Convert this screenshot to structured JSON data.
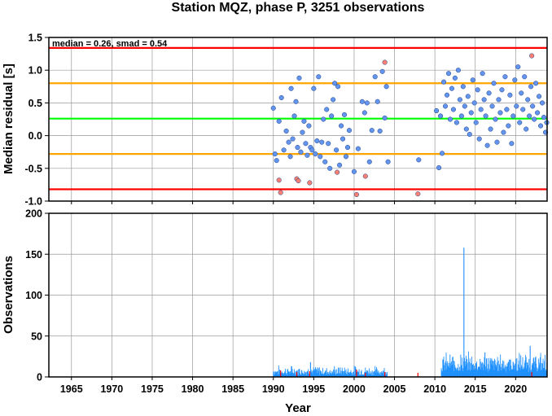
{
  "chart_data": [
    {
      "type": "scatter",
      "title": "Station MQZ, phase P, 3251 observations",
      "ylabel": "Median residual [s]",
      "annotation": "median = 0.26, smad = 0.54",
      "xlim": [
        1962.2,
        2023.9
      ],
      "ylim": [
        -1.0,
        1.5
      ],
      "yticks": [
        "-1.0",
        "-0.5",
        "0.0",
        "0.5",
        "1.0",
        "1.5"
      ],
      "grid": true,
      "reference_lines": [
        {
          "value": 1.34,
          "color": "#ff0000"
        },
        {
          "value": 0.8,
          "color": "#ffa500"
        },
        {
          "value": 0.26,
          "color": "#00ff00"
        },
        {
          "value": -0.28,
          "color": "#ffa500"
        },
        {
          "value": -0.82,
          "color": "#ff0000"
        }
      ],
      "series": [
        {
          "color": "#6495ed",
          "points": [
            [
              1990.0,
              0.42
            ],
            [
              1990.2,
              -0.28
            ],
            [
              1990.4,
              -0.38
            ],
            [
              1990.7,
              0.22
            ],
            [
              1991.0,
              0.58
            ],
            [
              1991.3,
              -0.22
            ],
            [
              1991.6,
              0.07
            ],
            [
              1991.9,
              -0.1
            ],
            [
              1992.1,
              -0.32
            ],
            [
              1992.2,
              0.72
            ],
            [
              1992.4,
              -0.05
            ],
            [
              1992.6,
              0.3
            ],
            [
              1992.8,
              0.52
            ],
            [
              1993.0,
              -0.18
            ],
            [
              1993.2,
              0.88
            ],
            [
              1993.4,
              -0.25
            ],
            [
              1993.6,
              0.05
            ],
            [
              1993.8,
              0.22
            ],
            [
              1994.0,
              -0.12
            ],
            [
              1994.2,
              -0.3
            ],
            [
              1994.4,
              0.15
            ],
            [
              1994.6,
              -0.18
            ],
            [
              1994.8,
              -0.22
            ],
            [
              1995.0,
              0.72
            ],
            [
              1995.2,
              -0.28
            ],
            [
              1995.4,
              -0.08
            ],
            [
              1995.6,
              0.9
            ],
            [
              1995.8,
              -0.32
            ],
            [
              1996.0,
              -0.1
            ],
            [
              1996.2,
              0.25
            ],
            [
              1996.4,
              -0.4
            ],
            [
              1996.6,
              0.4
            ],
            [
              1996.8,
              -0.12
            ],
            [
              1997.0,
              -0.5
            ],
            [
              1997.2,
              0.3
            ],
            [
              1997.4,
              0.55
            ],
            [
              1997.6,
              0.8
            ],
            [
              1997.8,
              -0.22
            ],
            [
              1998.0,
              0.75
            ],
            [
              1998.2,
              -0.45
            ],
            [
              1998.4,
              0.15
            ],
            [
              1998.6,
              -0.05
            ],
            [
              1998.8,
              0.32
            ],
            [
              1999.0,
              -0.32
            ],
            [
              1999.2,
              -0.18
            ],
            [
              1999.4,
              0.08
            ],
            [
              2000.0,
              -0.55
            ],
            [
              2000.5,
              -0.2
            ],
            [
              2001.0,
              0.52
            ],
            [
              2001.3,
              0.35
            ],
            [
              2001.6,
              0.5
            ],
            [
              2001.9,
              -0.4
            ],
            [
              2002.2,
              0.08
            ],
            [
              2002.6,
              0.9
            ],
            [
              2002.9,
              0.52
            ],
            [
              2003.2,
              0.07
            ],
            [
              2003.5,
              0.98
            ],
            [
              2003.8,
              0.27
            ],
            [
              2004.0,
              0.75
            ],
            [
              2004.2,
              -0.4
            ],
            [
              2008.0,
              -0.37
            ],
            [
              2010.2,
              0.38
            ],
            [
              2010.5,
              -0.49
            ],
            [
              2010.7,
              0.3
            ],
            [
              2010.9,
              -0.27
            ],
            [
              2011.1,
              0.82
            ],
            [
              2011.3,
              0.45
            ],
            [
              2011.5,
              0.62
            ],
            [
              2011.7,
              0.95
            ],
            [
              2011.9,
              0.25
            ],
            [
              2012.1,
              0.72
            ],
            [
              2012.3,
              0.4
            ],
            [
              2012.5,
              0.88
            ],
            [
              2012.7,
              0.2
            ],
            [
              2012.9,
              1.0
            ],
            [
              2013.1,
              0.55
            ],
            [
              2013.3,
              0.3
            ],
            [
              2013.5,
              0.75
            ],
            [
              2013.7,
              0.45
            ],
            [
              2013.9,
              0.1
            ],
            [
              2014.1,
              0.6
            ],
            [
              2014.3,
              0.02
            ],
            [
              2014.5,
              0.35
            ],
            [
              2014.7,
              0.85
            ],
            [
              2014.9,
              0.5
            ],
            [
              2015.1,
              0.2
            ],
            [
              2015.3,
              0.7
            ],
            [
              2015.5,
              -0.05
            ],
            [
              2015.7,
              0.4
            ],
            [
              2015.9,
              0.95
            ],
            [
              2016.1,
              0.55
            ],
            [
              2016.3,
              0.3
            ],
            [
              2016.5,
              -0.15
            ],
            [
              2016.7,
              0.65
            ],
            [
              2016.9,
              0.1
            ],
            [
              2017.1,
              0.45
            ],
            [
              2017.3,
              0.8
            ],
            [
              2017.5,
              0.25
            ],
            [
              2017.7,
              -0.1
            ],
            [
              2017.9,
              0.55
            ],
            [
              2018.1,
              0.35
            ],
            [
              2018.3,
              0.7
            ],
            [
              2018.5,
              0.05
            ],
            [
              2018.7,
              0.9
            ],
            [
              2018.9,
              0.4
            ],
            [
              2019.1,
              0.15
            ],
            [
              2019.3,
              0.62
            ],
            [
              2019.5,
              -0.12
            ],
            [
              2019.7,
              0.3
            ],
            [
              2019.9,
              0.85
            ],
            [
              2020.1,
              0.45
            ],
            [
              2020.3,
              1.05
            ],
            [
              2020.5,
              0.2
            ],
            [
              2020.7,
              0.65
            ],
            [
              2020.9,
              0.4
            ],
            [
              2021.1,
              0.9
            ],
            [
              2021.3,
              0.1
            ],
            [
              2021.5,
              0.55
            ],
            [
              2021.7,
              0.3
            ],
            [
              2021.9,
              0.75
            ],
            [
              2022.1,
              0.45
            ],
            [
              2022.3,
              0.25
            ],
            [
              2022.5,
              0.8
            ],
            [
              2022.7,
              0.35
            ],
            [
              2022.9,
              0.6
            ],
            [
              2023.1,
              0.15
            ],
            [
              2023.3,
              0.5
            ],
            [
              2023.5,
              0.28
            ],
            [
              2023.7,
              0.05
            ],
            [
              2023.85,
              0.2
            ]
          ]
        },
        {
          "color": "#fa8072",
          "points": [
            [
              1990.7,
              -0.68
            ],
            [
              1990.9,
              -0.87
            ],
            [
              1992.9,
              -0.66
            ],
            [
              1993.1,
              -0.69
            ],
            [
              1994.5,
              -0.72
            ],
            [
              1997.9,
              -0.56
            ],
            [
              2000.3,
              -0.9
            ],
            [
              2001.4,
              -0.62
            ],
            [
              2003.8,
              1.12
            ],
            [
              2007.9,
              -0.89
            ],
            [
              2022.0,
              1.22
            ]
          ]
        }
      ]
    },
    {
      "type": "bar",
      "xlabel": "Year",
      "ylabel": "Observations",
      "xlim": [
        1962.2,
        2023.9
      ],
      "ylim": [
        0,
        200
      ],
      "xticks": [
        "1965",
        "1970",
        "1975",
        "1980",
        "1985",
        "1990",
        "1995",
        "2000",
        "2005",
        "2010",
        "2015",
        "2020"
      ],
      "yticks": [
        "0",
        "50",
        "100",
        "150",
        "200"
      ],
      "grid": true,
      "series": [
        {
          "color": "#1e90ff",
          "segments": [
            {
              "start": 1990.0,
              "end": 2004.1,
              "min": 2,
              "max": 15
            },
            {
              "start": 2010.8,
              "end": 2023.9,
              "min": 6,
              "max": 32
            }
          ],
          "peaks": [
            [
              2013.6,
              158
            ],
            [
              2021.8,
              38
            ],
            [
              1994.6,
              18
            ],
            [
              2016.2,
              30
            ]
          ]
        },
        {
          "color": "#ff0000",
          "points": [
            [
              1990.9,
              8
            ],
            [
              1992.9,
              6
            ],
            [
              1994.5,
              7
            ],
            [
              2000.3,
              9
            ],
            [
              2001.4,
              5
            ],
            [
              2003.8,
              6
            ],
            [
              2007.9,
              5
            ],
            [
              2022.0,
              6
            ]
          ]
        }
      ]
    }
  ]
}
